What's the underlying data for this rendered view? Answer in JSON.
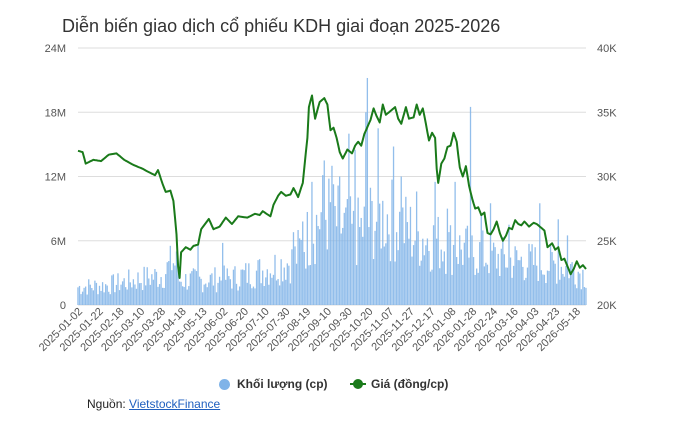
{
  "chart_data": {
    "type": "bar+line",
    "title": "Diễn biến giao dịch cổ phiếu KDH giai đoạn 2025-2026",
    "x_tick_labels": [
      "2025-01-02",
      "2025-01-22",
      "2025-02-18",
      "2025-03-10",
      "2025-03-28",
      "2025-04-18",
      "2025-05-13",
      "2025-06-02",
      "2025-06-20",
      "2025-07-10",
      "2025-07-30",
      "2025-08-19",
      "2025-09-10",
      "2025-09-30",
      "2025-10-20",
      "2025-11-07",
      "2025-11-27",
      "2025-12-17",
      "2026-01-08",
      "2026-01-28",
      "2026-02-24",
      "2026-03-16",
      "2026-04-03",
      "2026-04-23",
      "2026-05-18"
    ],
    "left_axis": {
      "ticks": [
        "0",
        "6M",
        "12M",
        "18M",
        "24M"
      ],
      "min": 0,
      "max": 24000000
    },
    "right_axis": {
      "ticks": [
        "20K",
        "25K",
        "30K",
        "35K",
        "40K"
      ],
      "min": 20000,
      "max": 40000
    },
    "grid": "horizontal",
    "legend_position": "bottom",
    "series": [
      {
        "name": "Khối lượng (cp)",
        "kind": "bar",
        "axis": "left",
        "color": "#7fb3e8",
        "keypoints": [
          [
            0,
            1.8
          ],
          [
            20,
            2.0
          ],
          [
            40,
            2.6
          ],
          [
            55,
            3.0
          ],
          [
            62,
            4.5
          ],
          [
            66,
            2.5
          ],
          [
            80,
            2.5
          ],
          [
            100,
            2.7
          ],
          [
            120,
            3.5
          ],
          [
            140,
            4.5
          ],
          [
            150,
            7.0
          ],
          [
            160,
            9.5
          ],
          [
            170,
            8.0
          ],
          [
            180,
            7.0
          ],
          [
            190,
            8.5
          ],
          [
            200,
            9.0
          ],
          [
            210,
            8.0
          ],
          [
            220,
            7.0
          ],
          [
            240,
            6.0
          ],
          [
            260,
            5.2
          ],
          [
            280,
            4.5
          ],
          [
            300,
            4.2
          ],
          [
            320,
            3.8
          ],
          [
            330,
            3.0
          ]
        ],
        "peaks": [
          [
            64,
            5.0
          ],
          [
            78,
            5.6
          ],
          [
            94,
            5.8
          ],
          [
            140,
            6.8
          ],
          [
            146,
            7.8
          ],
          [
            152,
            11.5
          ],
          [
            160,
            13.5
          ],
          [
            165,
            13.0
          ],
          [
            170,
            12.0
          ],
          [
            176,
            16.0
          ],
          [
            180,
            14.5
          ],
          [
            187,
            18.0
          ],
          [
            188,
            21.2
          ],
          [
            195,
            16.5
          ],
          [
            205,
            14.8
          ],
          [
            210,
            12.0
          ],
          [
            220,
            10.6
          ],
          [
            232,
            11.5
          ],
          [
            240,
            9.0
          ],
          [
            245,
            11.5
          ],
          [
            255,
            18.5
          ],
          [
            262,
            8.5
          ],
          [
            268,
            9.5
          ],
          [
            280,
            7.5
          ],
          [
            300,
            9.5
          ],
          [
            312,
            8.0
          ],
          [
            318,
            6.5
          ]
        ]
      },
      {
        "name": "Giá (đồng/cp)",
        "kind": "line",
        "axis": "right",
        "color": "#1a7a1a",
        "points": [
          [
            0,
            32.0
          ],
          [
            3,
            31.9
          ],
          [
            5,
            31.0
          ],
          [
            10,
            31.3
          ],
          [
            15,
            31.2
          ],
          [
            20,
            31.7
          ],
          [
            25,
            31.8
          ],
          [
            30,
            31.3
          ],
          [
            36,
            30.9
          ],
          [
            42,
            30.6
          ],
          [
            45,
            30.4
          ],
          [
            50,
            30.1
          ],
          [
            52,
            30.5
          ],
          [
            55,
            29.4
          ],
          [
            57,
            28.8
          ],
          [
            60,
            28.9
          ],
          [
            62,
            28.1
          ],
          [
            64,
            25.5
          ],
          [
            65,
            23.0
          ],
          [
            66,
            22.1
          ],
          [
            67,
            24.1
          ],
          [
            70,
            24.5
          ],
          [
            73,
            24.3
          ],
          [
            75,
            24.6
          ],
          [
            78,
            24.7
          ],
          [
            80,
            25.9
          ],
          [
            85,
            26.7
          ],
          [
            88,
            25.9
          ],
          [
            92,
            26.1
          ],
          [
            96,
            26.8
          ],
          [
            100,
            26.3
          ],
          [
            104,
            26.9
          ],
          [
            110,
            26.8
          ],
          [
            115,
            27.1
          ],
          [
            118,
            27.0
          ],
          [
            120,
            27.3
          ],
          [
            125,
            26.9
          ],
          [
            127,
            27.8
          ],
          [
            130,
            28.5
          ],
          [
            132,
            28.8
          ],
          [
            135,
            28.5
          ],
          [
            138,
            28.6
          ],
          [
            140,
            29.1
          ],
          [
            143,
            28.4
          ],
          [
            146,
            29.5
          ],
          [
            149,
            33.0
          ],
          [
            150,
            35.4
          ],
          [
            152,
            36.3
          ],
          [
            154,
            34.5
          ],
          [
            157,
            35.8
          ],
          [
            160,
            36.1
          ],
          [
            162,
            35.6
          ],
          [
            164,
            33.6
          ],
          [
            166,
            33.8
          ],
          [
            168,
            33.0
          ],
          [
            170,
            31.9
          ],
          [
            172,
            31.4
          ],
          [
            175,
            32.1
          ],
          [
            178,
            31.8
          ],
          [
            180,
            32.4
          ],
          [
            182,
            32.7
          ],
          [
            184,
            32.4
          ],
          [
            186,
            33.3
          ],
          [
            190,
            34.4
          ],
          [
            192,
            35.3
          ],
          [
            194,
            34.7
          ],
          [
            196,
            34.2
          ],
          [
            198,
            35.6
          ],
          [
            200,
            34.8
          ],
          [
            202,
            35.0
          ],
          [
            204,
            35.2
          ],
          [
            206,
            35.4
          ],
          [
            208,
            34.5
          ],
          [
            210,
            34.1
          ],
          [
            213,
            35.4
          ],
          [
            215,
            34.5
          ],
          [
            218,
            34.6
          ],
          [
            220,
            35.6
          ],
          [
            222,
            34.8
          ],
          [
            224,
            35.3
          ],
          [
            226,
            34.1
          ],
          [
            228,
            32.8
          ],
          [
            230,
            33.4
          ],
          [
            232,
            33.0
          ],
          [
            233,
            30.6
          ],
          [
            234,
            29.5
          ],
          [
            236,
            31.0
          ],
          [
            238,
            31.4
          ],
          [
            240,
            32.3
          ],
          [
            242,
            32.4
          ],
          [
            244,
            33.4
          ],
          [
            246,
            32.7
          ],
          [
            248,
            30.7
          ],
          [
            250,
            30.0
          ],
          [
            252,
            30.8
          ],
          [
            254,
            29.3
          ],
          [
            256,
            28.3
          ],
          [
            258,
            27.5
          ],
          [
            260,
            27.6
          ],
          [
            262,
            27.0
          ],
          [
            264,
            27.2
          ],
          [
            266,
            25.6
          ],
          [
            268,
            25.5
          ],
          [
            270,
            25.9
          ],
          [
            272,
            26.5
          ],
          [
            274,
            25.6
          ],
          [
            276,
            25.0
          ],
          [
            278,
            25.4
          ],
          [
            280,
            26.0
          ],
          [
            282,
            25.9
          ],
          [
            284,
            26.6
          ],
          [
            286,
            26.3
          ],
          [
            288,
            26.2
          ],
          [
            290,
            26.5
          ],
          [
            293,
            26.1
          ],
          [
            296,
            26.4
          ],
          [
            298,
            26.3
          ],
          [
            300,
            26.1
          ],
          [
            303,
            25.8
          ],
          [
            305,
            24.5
          ],
          [
            308,
            24.8
          ],
          [
            310,
            24.3
          ],
          [
            312,
            24.5
          ],
          [
            314,
            23.5
          ],
          [
            316,
            23.6
          ],
          [
            318,
            23.0
          ],
          [
            320,
            22.4
          ],
          [
            322,
            22.8
          ],
          [
            324,
            23.4
          ],
          [
            326,
            22.9
          ],
          [
            328,
            23.1
          ],
          [
            330,
            22.8
          ]
        ]
      }
    ]
  },
  "legend": {
    "volume_label": "Khối lượng (cp)",
    "price_label": "Giá (đồng/cp)"
  },
  "source": {
    "prefix": "Nguồn: ",
    "link_text": "VietstockFinance"
  },
  "colors": {
    "volume_bars": "#7fb3e8",
    "price_line": "#1a7a1a",
    "grid": "#dddddd",
    "link": "#1f5fbf"
  }
}
